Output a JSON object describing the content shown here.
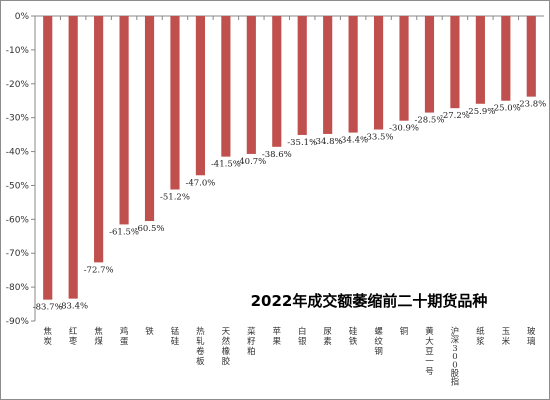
{
  "chart_data": {
    "type": "bar",
    "title": "2022年成交额萎缩前二十期货品种",
    "xlabel": "",
    "ylabel": "",
    "ylim": [
      -90,
      0
    ],
    "yticks": [
      0,
      -10,
      -20,
      -30,
      -40,
      -50,
      -60,
      -70,
      -80,
      -90
    ],
    "ytick_labels": [
      "0%",
      "-10%",
      "-20%",
      "-30%",
      "-40%",
      "-50%",
      "-60%",
      "-70%",
      "-80%",
      "-90%"
    ],
    "grid": false,
    "categories": [
      "焦炭",
      "红枣",
      "焦煤",
      "鸡蛋",
      "铁",
      "锰硅",
      "热轧卷板",
      "天然橡胶",
      "菜籽粕",
      "苹果",
      "白银",
      "尿素",
      "硅铁",
      "螺纹钢",
      "铜",
      "黄大豆一号",
      "沪深300股指",
      "纸浆",
      "玉米",
      "玻璃"
    ],
    "values": [
      -83.7,
      -83.4,
      -72.7,
      -61.5,
      -60.5,
      -51.2,
      -47.0,
      -41.5,
      -40.7,
      -38.6,
      -35.1,
      -34.8,
      -34.4,
      -33.5,
      -30.9,
      -28.5,
      -27.2,
      -25.9,
      -25.0,
      -23.8
    ],
    "value_labels": [
      "-83.7%",
      "-83.4%",
      "-72.7%",
      "-61.5%",
      "-60.5%",
      "-51.2%",
      "-47.0%",
      "-41.5%",
      "-40.7%",
      "-38.6%",
      "-35.1%",
      "-34.8%",
      "-34.4%",
      "-33.5%",
      "-30.9%",
      "-28.5%",
      "-27.2%",
      "-25.9%",
      "-25.0%",
      "-23.8%"
    ],
    "bar_color": "#c0504d",
    "axis_color": "#888888"
  }
}
